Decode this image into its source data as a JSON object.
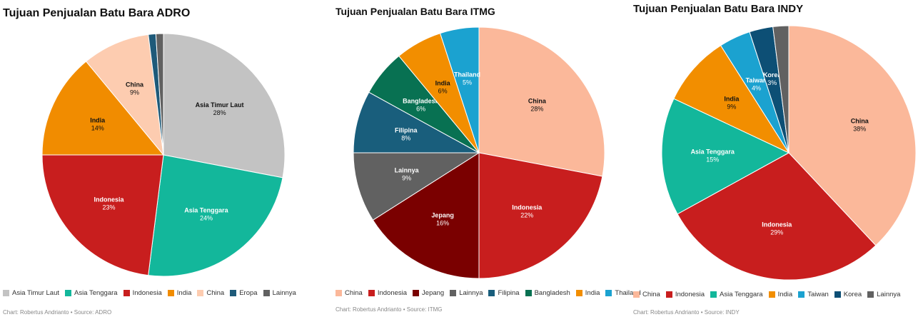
{
  "chart_data": [
    {
      "type": "pie",
      "title": "Tujuan Penjualan Batu Bara ADRO",
      "credit": "Chart: Robertus Andrianto • Source: ADRO",
      "slices": [
        {
          "name": "Asia Timur Laut",
          "value": 28,
          "label": "28%",
          "color": "#c3c3c3",
          "show_label": true
        },
        {
          "name": "Asia Tenggara",
          "value": 24,
          "label": "24%",
          "color": "#13b79b",
          "show_label": true
        },
        {
          "name": "Indonesia",
          "value": 23,
          "label": "23%",
          "color": "#c81e1e",
          "show_label": true
        },
        {
          "name": "India",
          "value": 14,
          "label": "14%",
          "color": "#f18c00",
          "show_label": true
        },
        {
          "name": "China",
          "value": 9,
          "label": "9%",
          "color": "#fdccb0",
          "show_label": true
        },
        {
          "name": "Eropa",
          "value": 1,
          "label": "",
          "color": "#1e5a79",
          "show_label": false
        },
        {
          "name": "Lainnya",
          "value": 1,
          "label": "",
          "color": "#616161",
          "show_label": false
        }
      ]
    },
    {
      "type": "pie",
      "title": "Tujuan Penjualan Batu Bara ITMG",
      "credit": "Chart: Robertus Andrianto • Source: ITMG",
      "slices": [
        {
          "name": "China",
          "value": 28,
          "label": "28%",
          "color": "#fbb89a",
          "show_label": true
        },
        {
          "name": "Indonesia",
          "value": 22,
          "label": "22%",
          "color": "#c81e1e",
          "show_label": true
        },
        {
          "name": "Jepang",
          "value": 16,
          "label": "16%",
          "color": "#7a0000",
          "show_label": true
        },
        {
          "name": "Lainnya",
          "value": 9,
          "label": "9%",
          "color": "#616161",
          "show_label": true
        },
        {
          "name": "Filipina",
          "value": 8,
          "label": "8%",
          "color": "#195e7c",
          "show_label": true
        },
        {
          "name": "Bangladesh",
          "value": 6,
          "label": "6%",
          "color": "#087152",
          "show_label": true
        },
        {
          "name": "India",
          "value": 6,
          "label": "6%",
          "color": "#f28e00",
          "show_label": true
        },
        {
          "name": "Thailand",
          "value": 5,
          "label": "5%",
          "color": "#1ba2d0",
          "show_label": true
        }
      ]
    },
    {
      "type": "pie",
      "title": "Tujuan Penjualan Batu Bara INDY",
      "credit": "Chart: Robertus Andrianto • Source: INDY",
      "slices": [
        {
          "name": "China",
          "value": 38,
          "label": "38%",
          "color": "#fbb89a",
          "show_label": true
        },
        {
          "name": "Indonesia",
          "value": 29,
          "label": "29%",
          "color": "#c81e1e",
          "show_label": true
        },
        {
          "name": "Asia Tenggara",
          "value": 15,
          "label": "15%",
          "color": "#13b79b",
          "show_label": true
        },
        {
          "name": "India",
          "value": 9,
          "label": "9%",
          "color": "#f28e00",
          "show_label": true
        },
        {
          "name": "Taiwan",
          "value": 4,
          "label": "4%",
          "color": "#1ba2d0",
          "show_label": true
        },
        {
          "name": "Korea",
          "value": 3,
          "label": "3%",
          "color": "#0d4f75",
          "show_label": true
        },
        {
          "name": "Lainnya",
          "value": 2,
          "label": "",
          "color": "#616161",
          "show_label": false
        }
      ]
    }
  ]
}
